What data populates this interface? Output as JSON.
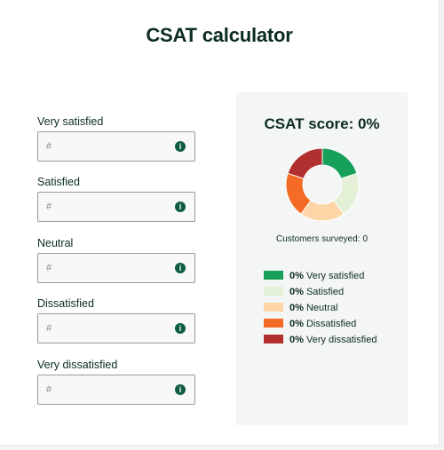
{
  "title": "CSAT calculator",
  "fields": [
    {
      "label": "Very satisfied",
      "placeholder": "#"
    },
    {
      "label": "Satisfied",
      "placeholder": "#"
    },
    {
      "label": "Neutral",
      "placeholder": "#"
    },
    {
      "label": "Dissatisfied",
      "placeholder": "#"
    },
    {
      "label": "Very dissatisfied",
      "placeholder": "#"
    }
  ],
  "info_icon_glyph": "i",
  "result": {
    "score_text": "CSAT score: 0%",
    "surveyed_label": "Customers surveyed:",
    "surveyed_value": "0"
  },
  "legend": [
    {
      "percent": "0%",
      "label": "Very satisfied",
      "color": "#16a05a"
    },
    {
      "percent": "0%",
      "label": "Satisfied",
      "color": "#e3f0d6"
    },
    {
      "percent": "0%",
      "label": "Neutral",
      "color": "#fdd5a6"
    },
    {
      "percent": "0%",
      "label": "Dissatisfied",
      "color": "#f46b25"
    },
    {
      "percent": "0%",
      "label": "Very dissatisfied",
      "color": "#b12f2f"
    }
  ],
  "donut_segments": [
    {
      "share": 0.2,
      "color": "#16a05a"
    },
    {
      "share": 0.2,
      "color": "#e3f0d6"
    },
    {
      "share": 0.2,
      "color": "#fdd5a6"
    },
    {
      "share": 0.2,
      "color": "#f46b25"
    },
    {
      "share": 0.2,
      "color": "#b12f2f"
    }
  ]
}
